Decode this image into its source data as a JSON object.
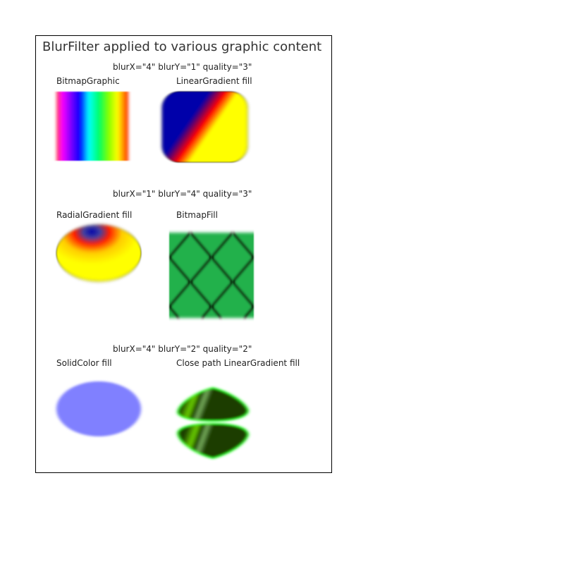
{
  "title": "BlurFilter applied to various graphic content",
  "groups": [
    {
      "filter_label": "blurX=\"4\" blurY=\"1\" quality=\"3\"",
      "items": [
        {
          "label": "BitmapGraphic"
        },
        {
          "label": "LinearGradient fill"
        }
      ]
    },
    {
      "filter_label": "blurX=\"1\" blurY=\"4\" quality=\"3\"",
      "items": [
        {
          "label": "RadialGradient fill"
        },
        {
          "label": "BitmapFill"
        }
      ]
    },
    {
      "filter_label": "blurX=\"4\" blurY=\"2\" quality=\"2\"",
      "items": [
        {
          "label": "SolidColor fill"
        },
        {
          "label": "Close path LinearGradient fill"
        }
      ]
    }
  ],
  "colors": {
    "solid_fill": "#8080ff",
    "bitmap_fill_green": "#22b14c",
    "radial_center": "#0000aa",
    "radial_outer": "#ffff00",
    "linear_start": "#0000aa",
    "linear_end": "#ffff00",
    "close_path_dark": "#1a3d00",
    "close_path_bright": "#00ff00"
  }
}
